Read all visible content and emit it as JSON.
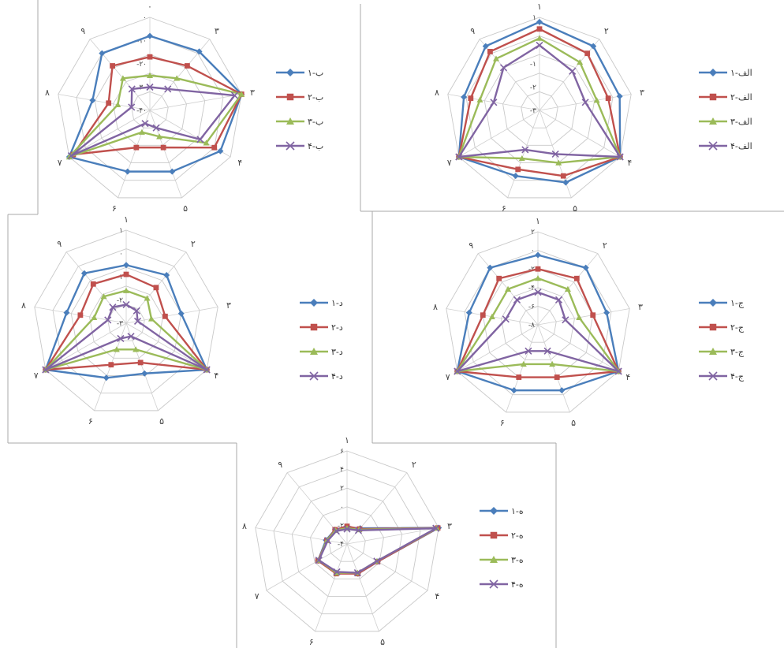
{
  "chart_data": [
    {
      "type": "radar",
      "categories": [
        "١",
        "٢",
        "٣",
        "۴",
        "۵",
        "۶",
        "٧",
        "٨",
        "٩"
      ],
      "ticks": [
        "١",
        "٠",
        "-١",
        "-٢",
        "-٣"
      ],
      "rlim": [
        -3,
        1
      ],
      "legend_position": "right",
      "series": [
        {
          "name": "الف-١",
          "color": "#4a7ebb",
          "marker": "diamond",
          "values": [
            0.8,
            0.6,
            0.5,
            1.0,
            0.3,
            0.0,
            1.0,
            0.3,
            0.6
          ]
        },
        {
          "name": "الف-٢",
          "color": "#c0504d",
          "marker": "square",
          "values": [
            0.5,
            0.2,
            0.0,
            1.0,
            0.0,
            -0.3,
            1.0,
            0.0,
            0.3
          ]
        },
        {
          "name": "الف-٣",
          "color": "#9bbb59",
          "marker": "triangle",
          "values": [
            0.1,
            -0.3,
            -0.5,
            1.0,
            -0.6,
            -0.8,
            1.0,
            -0.4,
            -0.1
          ]
        },
        {
          "name": "الف-۴",
          "color": "#8064a2",
          "marker": "cross",
          "values": [
            -0.2,
            -0.8,
            -1.0,
            1.0,
            -1.0,
            -1.2,
            1.0,
            -1.0,
            -0.6
          ]
        }
      ]
    },
    {
      "type": "radar",
      "categories": [
        "٠",
        "٣",
        "٣",
        "۴",
        "۵",
        "۶",
        "٧",
        "٨",
        "٩"
      ],
      "ticks": [
        "٠",
        "-١٠",
        "-٢٠",
        "-٣٠",
        "-۴٠"
      ],
      "rlim": [
        -40,
        0
      ],
      "legend_position": "right",
      "series": [
        {
          "name": "ب-١",
          "color": "#4a7ebb",
          "marker": "diamond",
          "values": [
            -8,
            -7,
            0,
            -5,
            -12,
            -12,
            0,
            -15,
            -8
          ]
        },
        {
          "name": "ب-٢",
          "color": "#c0504d",
          "marker": "square",
          "values": [
            -17,
            -15,
            0,
            -8,
            -23,
            -23,
            -2,
            -22,
            -15
          ]
        },
        {
          "name": "ب-٣",
          "color": "#9bbb59",
          "marker": "triangle",
          "values": [
            -25,
            -22,
            0,
            -12,
            -28,
            -30,
            0,
            -26,
            -22
          ]
        },
        {
          "name": "ب-۴",
          "color": "#8064a2",
          "marker": "cross",
          "values": [
            -30,
            -28,
            -3,
            -15,
            -32,
            -34,
            -1,
            -32,
            -28
          ]
        }
      ]
    },
    {
      "type": "radar",
      "categories": [
        "١",
        "٢",
        "٣",
        "۴",
        "۵",
        "۶",
        "٧",
        "٨",
        "٩"
      ],
      "ticks": [
        "١",
        "٠",
        "-١",
        "-٢",
        "-٣"
      ],
      "rlim": [
        -3,
        1
      ],
      "legend_position": "right",
      "series": [
        {
          "name": "د-١",
          "color": "#4a7ebb",
          "marker": "diamond",
          "values": [
            -0.5,
            -0.3,
            -0.6,
            1.0,
            -0.7,
            -0.5,
            1.0,
            -0.4,
            -0.2
          ]
        },
        {
          "name": "د-٢",
          "color": "#c0504d",
          "marker": "square",
          "values": [
            -0.9,
            -1.0,
            -1.3,
            1.0,
            -1.2,
            -1.1,
            1.0,
            -1.0,
            -0.8
          ]
        },
        {
          "name": "د-٣",
          "color": "#9bbb59",
          "marker": "triangle",
          "values": [
            -1.6,
            -1.6,
            -1.9,
            1.0,
            -1.8,
            -1.8,
            1.0,
            -1.6,
            -1.5
          ]
        },
        {
          "name": "د-۴",
          "color": "#8064a2",
          "marker": "cross",
          "values": [
            -2.2,
            -2.3,
            -2.5,
            1.0,
            -2.4,
            -2.3,
            1.0,
            -2.2,
            -2.1
          ]
        }
      ]
    },
    {
      "type": "radar",
      "categories": [
        "١",
        "٢",
        "٣",
        "۴",
        "۵",
        "۶",
        "٧",
        "٨",
        "٩"
      ],
      "ticks": [
        "٢",
        "٠",
        "-٢",
        "-۴",
        "-۶",
        "-٨"
      ],
      "rlim": [
        -8,
        2
      ],
      "legend_position": "right",
      "series": [
        {
          "name": "ج-١",
          "color": "#4a7ebb",
          "marker": "diamond",
          "values": [
            -0.5,
            0.0,
            -0.5,
            2.0,
            -0.5,
            -0.5,
            2.0,
            -0.5,
            0.0
          ]
        },
        {
          "name": "ج-٢",
          "color": "#c0504d",
          "marker": "square",
          "values": [
            -2.0,
            -1.5,
            -2.0,
            2.0,
            -2.0,
            -2.0,
            2.0,
            -2.0,
            -1.5
          ]
        },
        {
          "name": "ج-٣",
          "color": "#9bbb59",
          "marker": "triangle",
          "values": [
            -3.0,
            -3.0,
            -3.5,
            2.0,
            -3.5,
            -3.5,
            2.0,
            -3.0,
            -3.0
          ]
        },
        {
          "name": "ج-۴",
          "color": "#8064a2",
          "marker": "cross",
          "values": [
            -4.5,
            -4.5,
            -5.0,
            2.0,
            -5.0,
            -5.0,
            2.0,
            -4.5,
            -4.5
          ]
        }
      ]
    },
    {
      "type": "radar",
      "categories": [
        "١",
        "٢",
        "٣",
        "۴",
        "۵",
        "۶",
        "٧",
        "٨",
        "٩"
      ],
      "ticks": [
        "۶",
        "۴",
        "٢",
        "٠",
        "-٢",
        "-۴"
      ],
      "rlim": [
        -4,
        6
      ],
      "legend_position": "right",
      "series": [
        {
          "name": "ه-١",
          "color": "#4a7ebb",
          "marker": "diamond",
          "values": [
            -2.2,
            -1.8,
            6.0,
            -0.2,
            -0.6,
            -0.7,
            -0.4,
            -1.7,
            -2.0
          ]
        },
        {
          "name": "ه-٢",
          "color": "#c0504d",
          "marker": "square",
          "values": [
            -2.1,
            -1.9,
            5.9,
            -0.2,
            -0.6,
            -0.6,
            -0.4,
            -1.8,
            -2.0
          ]
        },
        {
          "name": "ه-٣",
          "color": "#9bbb59",
          "marker": "triangle",
          "values": [
            -2.3,
            -2.0,
            5.8,
            -0.3,
            -0.7,
            -0.7,
            -0.5,
            -1.8,
            -2.1
          ]
        },
        {
          "name": "ه-۴",
          "color": "#8064a2",
          "marker": "cross",
          "values": [
            -2.4,
            -2.1,
            5.7,
            -0.3,
            -0.7,
            -0.8,
            -0.5,
            -1.9,
            -2.2
          ]
        }
      ]
    }
  ]
}
